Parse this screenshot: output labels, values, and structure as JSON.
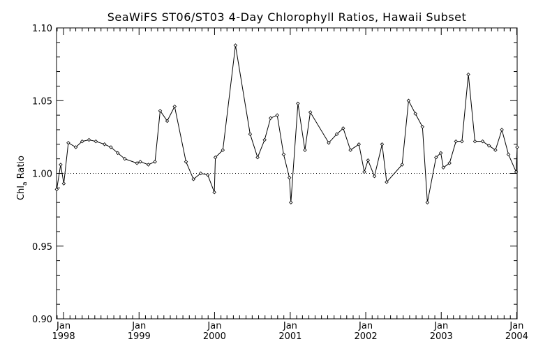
{
  "chart_data": {
    "type": "line",
    "title": "SeaWiFS ST06/ST03 4-Day Chlorophyll Ratios, Hawaii Subset",
    "ylabel_main": "Chl",
    "ylabel_sub": "a",
    "ylabel_rest": " Ratio",
    "ylim": [
      0.9,
      1.1
    ],
    "xlim": [
      "1997-11-28",
      "2004-01-03"
    ],
    "reference_line": 1.0,
    "y_ticks": [
      "0.90",
      "0.95",
      "1.00",
      "1.05",
      "1.10"
    ],
    "x_ticks": [
      {
        "month": "Jan",
        "year": "1998",
        "date": "1998-01-01"
      },
      {
        "month": "Jan",
        "year": "1999",
        "date": "1999-01-01"
      },
      {
        "month": "Jan",
        "year": "2000",
        "date": "2000-01-01"
      },
      {
        "month": "Jan",
        "year": "2001",
        "date": "2001-01-01"
      },
      {
        "month": "Jan",
        "year": "2002",
        "date": "2002-01-01"
      },
      {
        "month": "Jan",
        "year": "2003",
        "date": "2003-01-01"
      },
      {
        "month": "Jan",
        "year": "2004",
        "date": "2004-01-01"
      }
    ],
    "series": [
      {
        "points": [
          [
            "1997-11-29",
            0.989
          ],
          [
            "1997-12-18",
            1.006
          ],
          [
            "1998-01-02",
            0.993
          ],
          [
            "1998-01-24",
            1.021
          ],
          [
            "1998-03-01",
            1.018
          ],
          [
            "1998-04-01",
            1.022
          ],
          [
            "1998-05-04",
            1.023
          ],
          [
            "1998-06-06",
            1.022
          ],
          [
            "1998-07-18",
            1.02
          ],
          [
            "1998-08-18",
            1.018
          ],
          [
            "1998-09-20",
            1.014
          ],
          [
            "1998-10-24",
            1.01
          ],
          [
            "1998-12-22",
            1.007
          ],
          [
            "1999-01-07",
            1.008
          ],
          [
            "1999-02-15",
            1.006
          ],
          [
            "1999-03-19",
            1.008
          ],
          [
            "1999-04-13",
            1.043
          ],
          [
            "1999-05-17",
            1.036
          ],
          [
            "1999-06-22",
            1.046
          ],
          [
            "1999-08-16",
            1.008
          ],
          [
            "1999-09-21",
            0.996
          ],
          [
            "1999-10-26",
            1.0
          ],
          [
            "1999-11-29",
            0.999
          ],
          [
            "1999-12-31",
            0.987
          ],
          [
            "2000-01-05",
            1.011
          ],
          [
            "2000-02-10",
            1.016
          ],
          [
            "2000-04-11",
            1.088
          ],
          [
            "2000-06-21",
            1.027
          ],
          [
            "2000-07-27",
            1.011
          ],
          [
            "2000-08-30",
            1.023
          ],
          [
            "2000-09-28",
            1.038
          ],
          [
            "2000-10-30",
            1.04
          ],
          [
            "2000-11-30",
            1.013
          ],
          [
            "2000-12-28",
            0.997
          ],
          [
            "2001-01-04",
            0.98
          ],
          [
            "2001-02-07",
            1.048
          ],
          [
            "2001-03-13",
            1.016
          ],
          [
            "2001-04-08",
            1.042
          ],
          [
            "2001-07-06",
            1.021
          ],
          [
            "2001-08-14",
            1.027
          ],
          [
            "2001-09-14",
            1.031
          ],
          [
            "2001-10-19",
            1.016
          ],
          [
            "2001-11-29",
            1.02
          ],
          [
            "2001-12-25",
            1.001
          ],
          [
            "2002-01-12",
            1.009
          ],
          [
            "2002-02-12",
            0.998
          ],
          [
            "2002-03-21",
            1.02
          ],
          [
            "2002-04-12",
            0.994
          ],
          [
            "2002-06-26",
            1.006
          ],
          [
            "2002-07-27",
            1.05
          ],
          [
            "2002-08-29",
            1.041
          ],
          [
            "2002-10-02",
            1.032
          ],
          [
            "2002-10-26",
            0.98
          ],
          [
            "2002-12-07",
            1.011
          ],
          [
            "2002-12-30",
            1.014
          ],
          [
            "2003-01-11",
            1.004
          ],
          [
            "2003-02-10",
            1.007
          ],
          [
            "2003-03-13",
            1.022
          ],
          [
            "2003-04-11",
            1.022
          ],
          [
            "2003-05-12",
            1.068
          ],
          [
            "2003-06-13",
            1.022
          ],
          [
            "2003-07-20",
            1.022
          ],
          [
            "2003-08-20",
            1.019
          ],
          [
            "2003-09-20",
            1.016
          ],
          [
            "2003-10-21",
            1.03
          ],
          [
            "2003-11-22",
            1.013
          ],
          [
            "2003-12-29",
            1.001
          ],
          [
            "2004-01-03",
            1.018
          ]
        ]
      }
    ]
  }
}
